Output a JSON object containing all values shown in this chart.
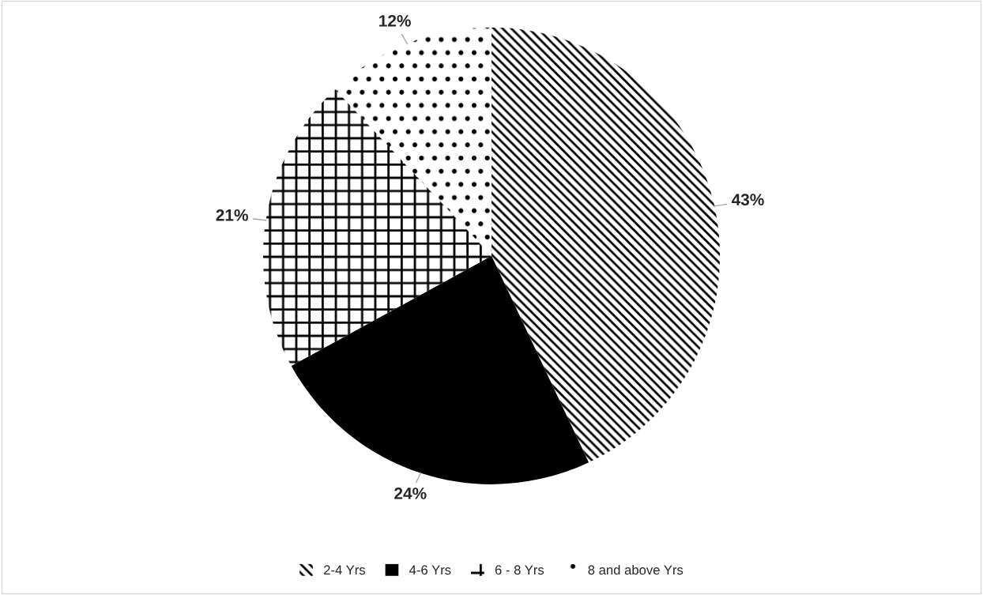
{
  "chart_data": {
    "type": "pie",
    "categories": [
      "2-4 Yrs",
      "4-6 Yrs",
      "6 - 8 Yrs",
      "8 and above Yrs"
    ],
    "values": [
      43,
      24,
      21,
      12
    ],
    "colors": [
      "#ffffff",
      "#000000",
      "#ffffff",
      "#ffffff"
    ],
    "value_labels": [
      "43%",
      "24%",
      "21%",
      "12%"
    ],
    "legend": "bottom"
  }
}
